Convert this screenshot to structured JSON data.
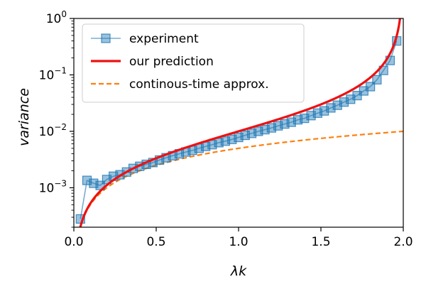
{
  "chart_data": {
    "type": "line",
    "xlabel": "λk",
    "ylabel": "variance",
    "xscale": "linear",
    "yscale": "log",
    "xlim": [
      0.0,
      2.0
    ],
    "ylim": [
      0.0002,
      1.0
    ],
    "xticks": [
      {
        "value": 0.0,
        "label": "0.0"
      },
      {
        "value": 0.5,
        "label": "0.5"
      },
      {
        "value": 1.0,
        "label": "1.0"
      },
      {
        "value": 1.5,
        "label": "1.5"
      },
      {
        "value": 2.0,
        "label": "2.0"
      }
    ],
    "yticks": [
      {
        "value": 0.001,
        "base": "10",
        "exp": "−3"
      },
      {
        "value": 0.01,
        "base": "10",
        "exp": "−2"
      },
      {
        "value": 0.1,
        "base": "10",
        "exp": "−1"
      },
      {
        "value": 1.0,
        "base": "10",
        "exp": "0"
      }
    ],
    "legend_position": "top-left",
    "grid": false,
    "series": [
      {
        "name": "experiment",
        "style": "line-with-square-markers",
        "color": "#1f77b4",
        "x": [
          0.04,
          0.08,
          0.12,
          0.16,
          0.2,
          0.24,
          0.28,
          0.32,
          0.36,
          0.4,
          0.44,
          0.48,
          0.52,
          0.56,
          0.6,
          0.64,
          0.68,
          0.72,
          0.76,
          0.8,
          0.84,
          0.88,
          0.92,
          0.96,
          1.0,
          1.04,
          1.08,
          1.12,
          1.16,
          1.2,
          1.24,
          1.28,
          1.32,
          1.36,
          1.4,
          1.44,
          1.48,
          1.52,
          1.56,
          1.6,
          1.64,
          1.68,
          1.72,
          1.76,
          1.8,
          1.84,
          1.88,
          1.92,
          1.96
        ],
        "y": [
          0.00028,
          0.00135,
          0.0012,
          0.0011,
          0.0014,
          0.0016,
          0.0017,
          0.0019,
          0.0022,
          0.0024,
          0.0026,
          0.0028,
          0.0031,
          0.0034,
          0.0037,
          0.004,
          0.0043,
          0.0046,
          0.005,
          0.0054,
          0.0058,
          0.0063,
          0.0067,
          0.0072,
          0.0078,
          0.0085,
          0.0092,
          0.01,
          0.0107,
          0.0115,
          0.0125,
          0.0135,
          0.0145,
          0.016,
          0.017,
          0.019,
          0.021,
          0.023,
          0.026,
          0.029,
          0.033,
          0.037,
          0.043,
          0.052,
          0.062,
          0.082,
          0.12,
          0.18,
          0.4
        ]
      },
      {
        "name": "our prediction",
        "style": "solid-line",
        "color": "#ee1111",
        "formula": "x / (100 * (2 - x))"
      },
      {
        "name": "continous-time approx.",
        "style": "dashed-line",
        "color": "#ff7f0e",
        "formula": "x / 200"
      }
    ]
  }
}
